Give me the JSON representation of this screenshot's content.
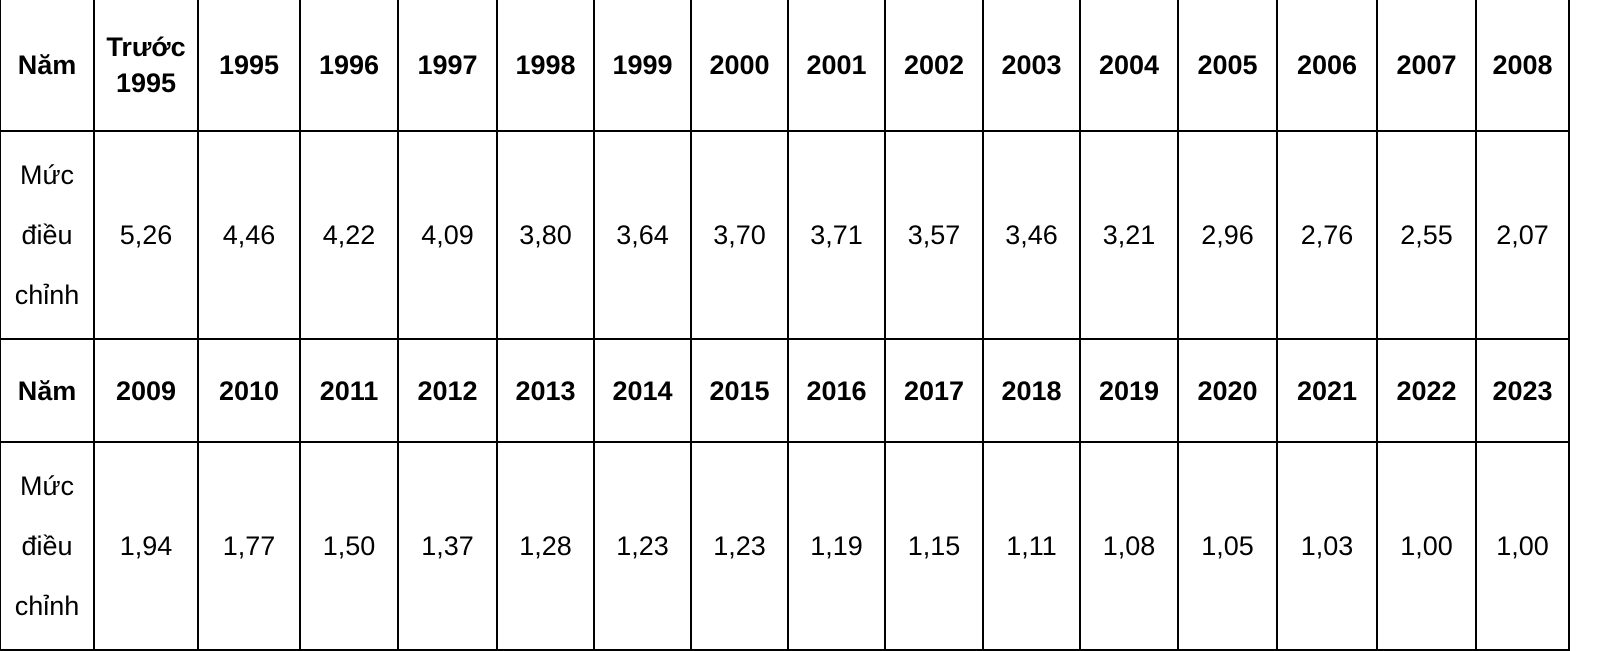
{
  "table": {
    "rows": [
      [
        "Năm",
        "Trước 1995",
        "1995",
        "1996",
        "1997",
        "1998",
        "1999",
        "2000",
        "2001",
        "2002",
        "2003",
        "2004",
        "2005",
        "2006",
        "2007",
        "2008"
      ],
      [
        "Mức điều chỉnh",
        "5,26",
        "4,46",
        "4,22",
        "4,09",
        "3,80",
        "3,64",
        "3,70",
        "3,71",
        "3,57",
        "3,46",
        "3,21",
        "2,96",
        "2,76",
        "2,55",
        "2,07"
      ],
      [
        "Năm",
        "2009",
        "2010",
        "2011",
        "2012",
        "2013",
        "2014",
        "2015",
        "2016",
        "2017",
        "2018",
        "2019",
        "2020",
        "2021",
        "2022",
        "2023"
      ],
      [
        "Mức điều chỉnh",
        "1,94",
        "1,77",
        "1,50",
        "1,37",
        "1,28",
        "1,23",
        "1,23",
        "1,19",
        "1,15",
        "1,11",
        "1,08",
        "1,05",
        "1,03",
        "1,00",
        "1,00"
      ]
    ]
  }
}
